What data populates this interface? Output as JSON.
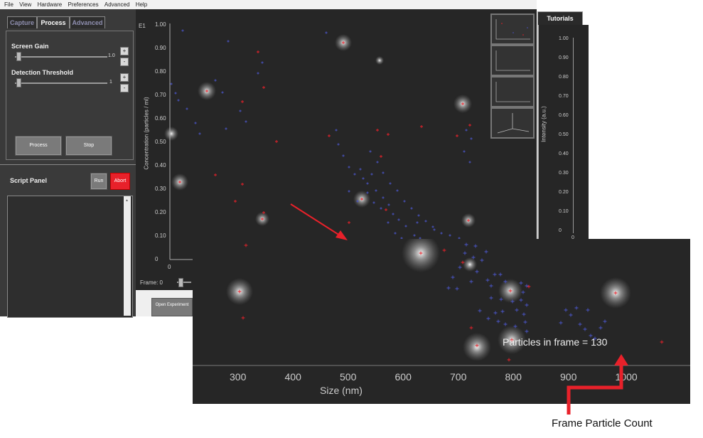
{
  "menu": [
    "File",
    "View",
    "Hardware",
    "Preferences",
    "Advanced",
    "Help"
  ],
  "tabs": {
    "capture": "Capture",
    "process": "Process",
    "advanced": "Advanced"
  },
  "process": {
    "screen_gain_label": "Screen Gain",
    "screen_gain_value": "1.0",
    "detection_threshold_label": "Detection Threshold",
    "detection_threshold_value": "1",
    "plus": "+",
    "minus": "-",
    "process_button": "Process",
    "stop_button": "Stop"
  },
  "script_panel": {
    "title": "Script Panel",
    "run_button": "Run",
    "abort_button": "Abort"
  },
  "main_plot": {
    "corner_label": "E1",
    "ylabel": "Concentration (particles / ml)",
    "yticks": [
      "1.00",
      "0.90",
      "0.80",
      "0.70",
      "0.60",
      "0.50",
      "0.40",
      "0.30",
      "0.20",
      "0.10",
      "0"
    ],
    "x_first_tick": "0",
    "frame_label": "Frame: 0"
  },
  "open_experiment_button": "Open Experiment",
  "right_panel": {
    "tab": "Tutorials",
    "ylabel": "Intensity (a.u.)",
    "yticks": [
      "1.00",
      "0.90",
      "0.80",
      "0.70",
      "0.60",
      "0.50",
      "0.40",
      "0.30",
      "0.20",
      "0.10",
      "0"
    ],
    "x_first_tick": "0"
  },
  "inset": {
    "xlabel": "Size (nm)",
    "xticks": [
      "300",
      "400",
      "500",
      "600",
      "700",
      "800",
      "900",
      "1000"
    ],
    "particles_text": "Particles in frame = 130"
  },
  "annotation": "Frame Particle Count",
  "colors": {
    "accent_red": "#e8212a",
    "particle_blue": "#4a55c8",
    "plot_bg": "#262626",
    "abort": "#e8212a"
  }
}
